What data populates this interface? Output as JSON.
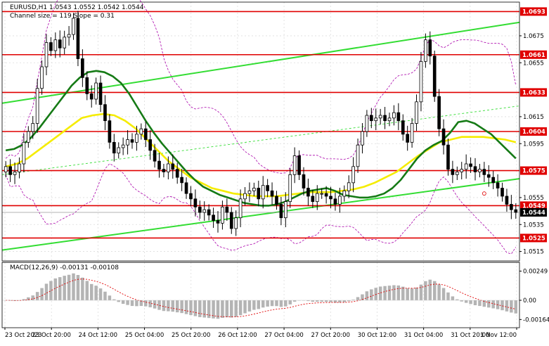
{
  "header": {
    "title": "EURUSD,H1  1.0543 1.0552 1.0542 1.0544",
    "channel": "Channel size = 119 Slope = 0.31"
  },
  "macd": {
    "label": "MACD(12,26,9) -0.00131 -0.00108",
    "axis_ticks": [
      {
        "text": "0.00249",
        "v": 0.00249
      },
      {
        "text": "0.00",
        "v": 0.0
      },
      {
        "text": "-0.00164",
        "v": -0.00164
      }
    ]
  },
  "colors": {
    "resistance": "#e00000",
    "channel": "#33dd33",
    "ma_fast": "#157a15",
    "ma_slow": "#f5ec00",
    "bollinger": "#aa00aa",
    "candle": "#000000",
    "macd_hist": "#b4b4b4",
    "macd_signal": "#e00000",
    "label_bg": "#e00000",
    "current_bg": "#000000"
  },
  "chart_data": {
    "type": "candlestick",
    "symbol": "EURUSD",
    "timeframe": "H1",
    "ylim": [
      1.0508,
      1.07
    ],
    "y_ticks": [
      {
        "text": "1.0675",
        "v": 1.0675
      },
      {
        "text": "1.0655",
        "v": 1.0655
      },
      {
        "text": "1.0615",
        "v": 1.0615
      },
      {
        "text": "1.0595",
        "v": 1.0595
      },
      {
        "text": "1.0555",
        "v": 1.0555
      },
      {
        "text": "1.0535",
        "v": 1.0535
      },
      {
        "text": "1.0515",
        "v": 1.0515
      }
    ],
    "x_labels": [
      "23 Oct 2023",
      "23 Oct 20:00",
      "24 Oct 12:00",
      "25 Oct 04:00",
      "25 Oct 20:00",
      "26 Oct 12:00",
      "27 Oct 04:00",
      "27 Oct 20:00",
      "30 Oct 12:00",
      "31 Oct 04:00",
      "31 Oct 20:00",
      "1 Nov 12:00"
    ],
    "horizontal_levels": [
      {
        "text": "1.0693",
        "v": 1.0693
      },
      {
        "text": "1.0661",
        "v": 1.0661
      },
      {
        "text": "1.0633",
        "v": 1.0633
      },
      {
        "text": "1.0604",
        "v": 1.0604
      },
      {
        "text": "1.0575",
        "v": 1.0575
      },
      {
        "text": "1.0549",
        "v": 1.0549
      },
      {
        "text": "1.0525",
        "v": 1.0525
      }
    ],
    "current_price": {
      "text": "1.0544",
      "v": 1.0544
    },
    "channel": {
      "upper": [
        [
          0,
          1.0625
        ],
        [
          175,
          1.0685
        ]
      ],
      "lower": [
        [
          0,
          1.0516
        ],
        [
          175,
          1.0569
        ]
      ],
      "middle": [
        [
          0,
          1.0572
        ],
        [
          175,
          1.0623
        ]
      ]
    },
    "closes": [
      1.0578,
      1.0572,
      1.0574,
      1.058,
      1.0596,
      1.0604,
      1.061,
      1.0636,
      1.0652,
      1.067,
      1.0664,
      1.0672,
      1.0666,
      1.0674,
      1.0676,
      1.0688,
      1.0658,
      1.0644,
      1.0632,
      1.0628,
      1.064,
      1.0624,
      1.0612,
      1.0596,
      1.0588,
      1.0592,
      1.0594,
      1.0598,
      1.0596,
      1.0602,
      1.0606,
      1.0598,
      1.059,
      1.0582,
      1.0576,
      1.0574,
      1.058,
      1.0576,
      1.057,
      1.0566,
      1.0558,
      1.0554,
      1.0548,
      1.0544,
      1.0546,
      1.0542,
      1.0538,
      1.0536,
      1.0548,
      1.0544,
      1.0532,
      1.054,
      1.0554,
      1.0558,
      1.056,
      1.0562,
      1.0554,
      1.0564,
      1.056,
      1.0556,
      1.055,
      1.054,
      1.0552,
      1.0572,
      1.0586,
      1.0572,
      1.0562,
      1.0556,
      1.0552,
      1.0558,
      1.0558,
      1.0556,
      1.0554,
      1.055,
      1.0556,
      1.056,
      1.0566,
      1.0578,
      1.0594,
      1.0604,
      1.0616,
      1.0612,
      1.0614,
      1.0616,
      1.0612,
      1.0614,
      1.0618,
      1.0612,
      1.0602,
      1.0596,
      1.061,
      1.0626,
      1.0656,
      1.0672,
      1.066,
      1.063,
      1.0606,
      1.0594,
      1.0576,
      1.0572,
      1.0574,
      1.0576,
      1.058,
      1.0578,
      1.0574,
      1.0576,
      1.0572,
      1.057,
      1.0566,
      1.0562,
      1.0556,
      1.055,
      1.0546,
      1.0544
    ],
    "ma_fast": [
      1.059,
      1.0591,
      1.0594,
      1.0599,
      1.0606,
      1.0614,
      1.0622,
      1.063,
      1.0638,
      1.0644,
      1.0648,
      1.0649,
      1.0648,
      1.0645,
      1.064,
      1.0632,
      1.0622,
      1.0612,
      1.0603,
      1.0595,
      1.0588,
      1.0581,
      1.0574,
      1.0568,
      1.0563,
      1.056,
      1.0557,
      1.0555,
      1.0553,
      1.0551,
      1.055,
      1.0549,
      1.0549,
      1.055,
      1.0552,
      1.0555,
      1.0558,
      1.056,
      1.0561,
      1.0562,
      1.056,
      1.0557,
      1.0556,
      1.0555,
      1.0555,
      1.0556,
      1.0558,
      1.0562,
      1.0568,
      1.0576,
      1.0584,
      1.059,
      1.0594,
      1.0597,
      1.0603,
      1.0611,
      1.0612,
      1.061,
      1.0606,
      1.0602,
      1.0596,
      1.059,
      1.0584
    ],
    "ma_slow": [
      1.0578,
      1.058,
      1.0584,
      1.059,
      1.0596,
      1.0602,
      1.0608,
      1.0614,
      1.0616,
      1.0617,
      1.0616,
      1.0612,
      1.0606,
      1.0598,
      1.059,
      1.0582,
      1.0576,
      1.057,
      1.0566,
      1.0562,
      1.056,
      1.0558,
      1.0557,
      1.0556,
      1.0556,
      1.0556,
      1.0557,
      1.0558,
      1.0559,
      1.0559,
      1.0559,
      1.056,
      1.0561,
      1.0563,
      1.0566,
      1.057,
      1.0574,
      1.058,
      1.0586,
      1.0591,
      1.0596,
      1.0598,
      1.06,
      1.06,
      1.06,
      1.0599,
      1.0598,
      1.0596
    ]
  }
}
